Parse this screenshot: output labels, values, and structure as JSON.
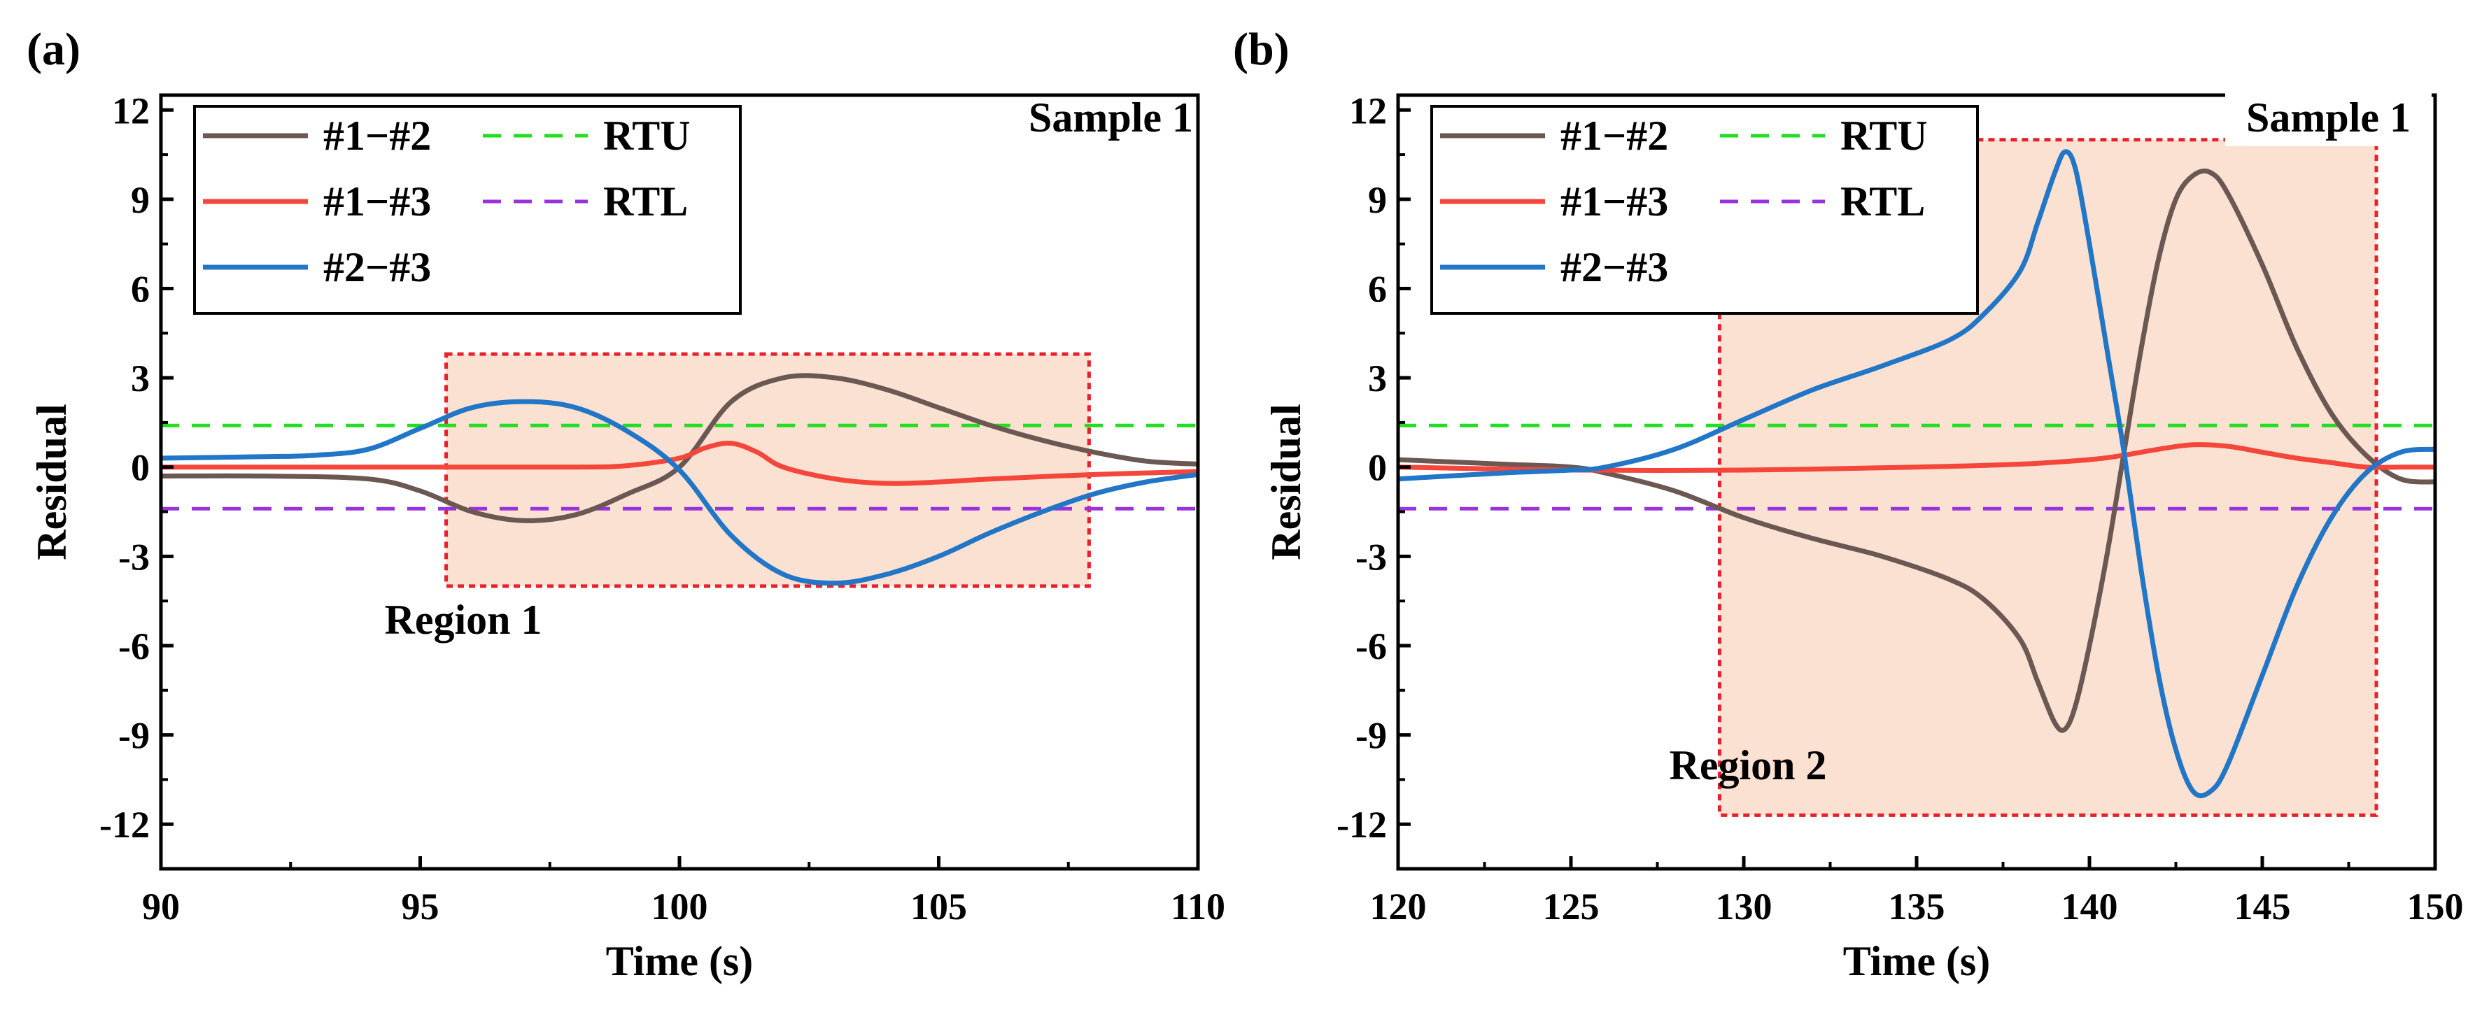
{
  "chart_data": [
    {
      "panel_label": "(a)",
      "type": "line",
      "xlabel": "Time (s)",
      "ylabel": "Residual",
      "xlim": [
        90,
        110
      ],
      "ylim": [
        -13.5,
        12.5
      ],
      "xticks": [
        "90",
        "95",
        "100",
        "105",
        "110"
      ],
      "yticks": [
        "12",
        "9",
        "6",
        "3",
        "0",
        "-3",
        "-6",
        "-9",
        "-12"
      ],
      "grid": false,
      "legend_position": "top-left",
      "annotation": "Sample 1",
      "region": {
        "label": "Region 1",
        "x": [
          95.5,
          107.9
        ],
        "y": [
          -4.0,
          3.8
        ]
      },
      "series": [
        {
          "name": "#1−#2",
          "color": "#6b5853",
          "style": "solid",
          "x": [
            90,
            92,
            94,
            95,
            96,
            97,
            98,
            99,
            100,
            101,
            102,
            103,
            104,
            105,
            106,
            107,
            108,
            109,
            110
          ],
          "values": [
            -0.3,
            -0.3,
            -0.4,
            -0.8,
            -1.5,
            -1.8,
            -1.6,
            -0.9,
            0.0,
            2.2,
            3.0,
            3.0,
            2.6,
            2.0,
            1.4,
            0.9,
            0.5,
            0.2,
            0.1
          ]
        },
        {
          "name": "#1−#3",
          "color": "#f5463c",
          "style": "solid",
          "x": [
            90,
            95,
            98,
            99,
            100,
            100.5,
            101,
            101.5,
            102,
            103,
            104,
            105,
            106,
            108,
            110
          ],
          "values": [
            0.0,
            0.0,
            0.0,
            0.05,
            0.3,
            0.65,
            0.8,
            0.5,
            0.0,
            -0.4,
            -0.55,
            -0.5,
            -0.4,
            -0.25,
            -0.15
          ]
        },
        {
          "name": "#2−#3",
          "color": "#2176c7",
          "style": "solid",
          "x": [
            90,
            92,
            93,
            94,
            95,
            96,
            97,
            98,
            99,
            100,
            101,
            102,
            103,
            104,
            105,
            106,
            107,
            108,
            109,
            110
          ],
          "values": [
            0.3,
            0.35,
            0.4,
            0.6,
            1.3,
            2.0,
            2.2,
            2.0,
            1.2,
            -0.1,
            -2.3,
            -3.6,
            -3.9,
            -3.6,
            -3.0,
            -2.2,
            -1.5,
            -0.9,
            -0.5,
            -0.25
          ]
        },
        {
          "name": "RTU",
          "color": "#22dd22",
          "style": "dashed",
          "x": [
            90,
            110
          ],
          "values": [
            1.4,
            1.4
          ]
        },
        {
          "name": "RTL",
          "color": "#9933dd",
          "style": "dashed",
          "x": [
            90,
            110
          ],
          "values": [
            -1.4,
            -1.4
          ]
        }
      ]
    },
    {
      "panel_label": "(b)",
      "type": "line",
      "xlabel": "Time (s)",
      "ylabel": "Residual",
      "xlim": [
        120,
        150
      ],
      "ylim": [
        -13.5,
        12.5
      ],
      "xticks": [
        "120",
        "125",
        "130",
        "135",
        "140",
        "145",
        "150"
      ],
      "yticks": [
        "12",
        "9",
        "6",
        "3",
        "0",
        "-3",
        "-6",
        "-9",
        "-12"
      ],
      "grid": false,
      "legend_position": "top-left",
      "annotation": "Sample 1",
      "region": {
        "label": "Region 2",
        "x": [
          129.3,
          148.3
        ],
        "y": [
          -11.7,
          11.0
        ]
      },
      "series": [
        {
          "name": "#1−#2",
          "color": "#6b5853",
          "style": "solid",
          "x": [
            120,
            123,
            125,
            126,
            128,
            130,
            132,
            134,
            136,
            137,
            138,
            138.5,
            139,
            139.3,
            139.6,
            140,
            140.5,
            141,
            141.5,
            142,
            142.5,
            143,
            143.5,
            144,
            145,
            146,
            147,
            148,
            149,
            150
          ],
          "values": [
            0.25,
            0.1,
            0.0,
            -0.2,
            -0.8,
            -1.7,
            -2.4,
            -3.0,
            -3.8,
            -4.5,
            -5.8,
            -7.2,
            -8.6,
            -8.8,
            -8.0,
            -6.0,
            -3.0,
            0.5,
            4.0,
            7.0,
            9.0,
            9.8,
            9.9,
            9.2,
            6.8,
            4.0,
            1.8,
            0.4,
            -0.4,
            -0.5
          ]
        },
        {
          "name": "#1−#3",
          "color": "#f5463c",
          "style": "solid",
          "x": [
            120,
            125,
            130,
            135,
            138,
            140,
            141,
            142,
            143,
            144,
            145,
            146,
            147,
            148,
            149,
            150
          ],
          "values": [
            0.0,
            -0.1,
            -0.1,
            0.0,
            0.1,
            0.25,
            0.4,
            0.6,
            0.75,
            0.7,
            0.5,
            0.3,
            0.15,
            0.0,
            0.0,
            0.0
          ]
        },
        {
          "name": "#2−#3",
          "color": "#2176c7",
          "style": "solid",
          "x": [
            120,
            123,
            125,
            126,
            128,
            130,
            132,
            134,
            136,
            137,
            138,
            138.5,
            139,
            139.3,
            139.6,
            140,
            140.5,
            141,
            141.5,
            142,
            142.5,
            143,
            143.5,
            144,
            145,
            146,
            147,
            148,
            149,
            150
          ],
          "values": [
            -0.4,
            -0.2,
            -0.1,
            0.0,
            0.6,
            1.6,
            2.6,
            3.4,
            4.3,
            5.2,
            6.6,
            8.2,
            9.9,
            10.6,
            10.0,
            7.5,
            4.0,
            0.5,
            -3.5,
            -7.0,
            -9.5,
            -10.9,
            -10.9,
            -10.0,
            -7.0,
            -4.0,
            -1.7,
            -0.2,
            0.5,
            0.6
          ]
        },
        {
          "name": "RTU",
          "color": "#22dd22",
          "style": "dashed",
          "x": [
            120,
            150
          ],
          "values": [
            1.4,
            1.4
          ]
        },
        {
          "name": "RTL",
          "color": "#9933dd",
          "style": "dashed",
          "x": [
            120,
            150
          ],
          "values": [
            -1.4,
            -1.4
          ]
        }
      ]
    }
  ],
  "style": {
    "region_fill": "#fbe1d2",
    "region_border": "#e8202a"
  }
}
